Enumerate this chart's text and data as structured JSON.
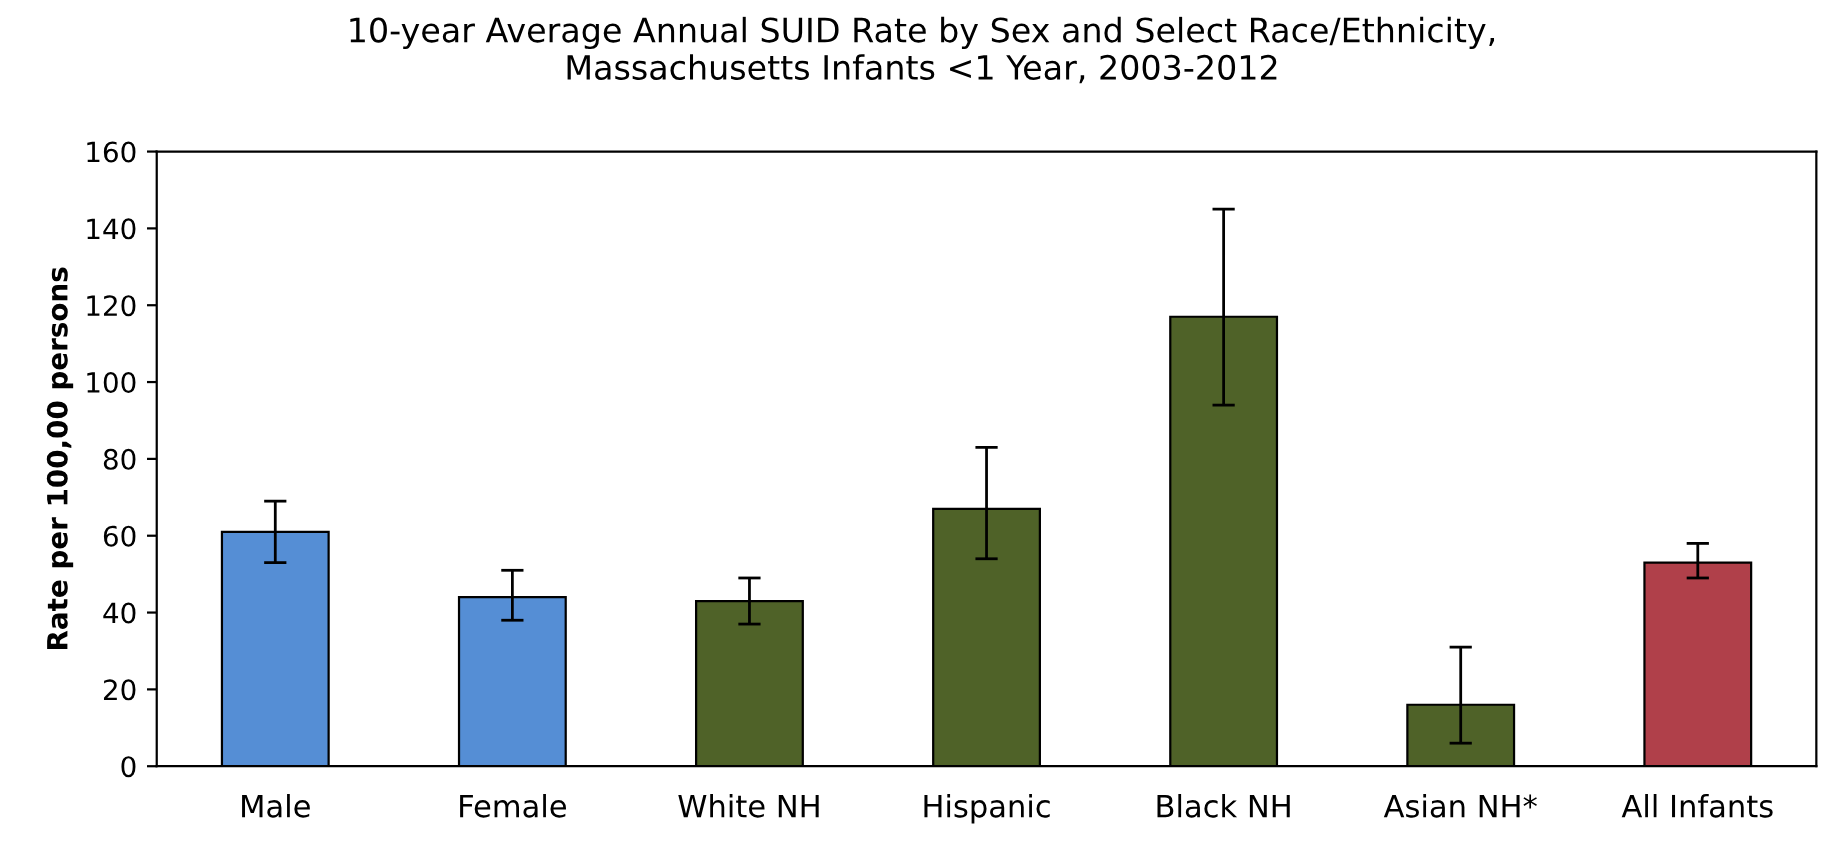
{
  "chart_data": {
    "type": "bar",
    "title": "10-year Average Annual SUID Rate by Sex and Select Race/Ethnicity,\nMassachusetts Infants <1 Year, 2003-2012",
    "ylabel": "Rate per 100,00 persons",
    "categories": [
      "Male",
      "Female",
      "White NH",
      "Hispanic",
      "Black NH",
      "Asian NH*",
      "All Infants"
    ],
    "values": [
      61,
      44,
      43,
      67,
      117,
      16,
      53
    ],
    "errors": [
      [
        53,
        69
      ],
      [
        38,
        51
      ],
      [
        37,
        49
      ],
      [
        54,
        83
      ],
      [
        94,
        145
      ],
      [
        6,
        31
      ],
      [
        49,
        58
      ]
    ],
    "colors": [
      "#558ed5",
      "#558ed5",
      "#4f6228",
      "#4f6228",
      "#4f6228",
      "#4f6228",
      "#b0404a"
    ],
    "ylim": [
      0,
      160
    ],
    "yticks": [
      0,
      20,
      40,
      60,
      80,
      100,
      120,
      140,
      160
    ],
    "grid": false,
    "legend": false
  }
}
